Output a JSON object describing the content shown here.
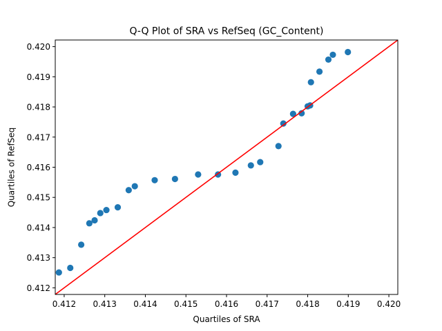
{
  "chart_data": {
    "type": "scatter",
    "title": "Q-Q Plot of SRA vs RefSeq (GC_Content)",
    "xlabel": "Quartiles of SRA",
    "ylabel": "Quartiles of RefSeq",
    "xlim": [
      0.41178,
      0.42022
    ],
    "ylim": [
      0.41178,
      0.42022
    ],
    "xticks": [
      "0.412",
      "0.413",
      "0.414",
      "0.415",
      "0.416",
      "0.417",
      "0.418",
      "0.419",
      "0.420"
    ],
    "yticks": [
      "0.412",
      "0.413",
      "0.414",
      "0.415",
      "0.416",
      "0.417",
      "0.418",
      "0.419",
      "0.420"
    ],
    "grid": false,
    "colors": {
      "points": "#1f77b4",
      "reference_line": "#ff0000"
    },
    "reference_line": {
      "from": [
        0.41178,
        0.41178
      ],
      "to": [
        0.42022,
        0.42022
      ]
    },
    "points": [
      {
        "x": 0.41187,
        "y": 0.41251
      },
      {
        "x": 0.41215,
        "y": 0.41266
      },
      {
        "x": 0.41242,
        "y": 0.41343
      },
      {
        "x": 0.41262,
        "y": 0.41414
      },
      {
        "x": 0.41275,
        "y": 0.41424
      },
      {
        "x": 0.41289,
        "y": 0.41448
      },
      {
        "x": 0.41304,
        "y": 0.41458
      },
      {
        "x": 0.41332,
        "y": 0.41467
      },
      {
        "x": 0.41359,
        "y": 0.41524
      },
      {
        "x": 0.41374,
        "y": 0.41537
      },
      {
        "x": 0.41423,
        "y": 0.41557
      },
      {
        "x": 0.41473,
        "y": 0.41561
      },
      {
        "x": 0.4153,
        "y": 0.41576
      },
      {
        "x": 0.41579,
        "y": 0.41576
      },
      {
        "x": 0.41622,
        "y": 0.41582
      },
      {
        "x": 0.4166,
        "y": 0.41606
      },
      {
        "x": 0.41683,
        "y": 0.41617
      },
      {
        "x": 0.41728,
        "y": 0.4167
      },
      {
        "x": 0.4174,
        "y": 0.41745
      },
      {
        "x": 0.41764,
        "y": 0.41777
      },
      {
        "x": 0.41785,
        "y": 0.41779
      },
      {
        "x": 0.418,
        "y": 0.41802
      },
      {
        "x": 0.41806,
        "y": 0.41805
      },
      {
        "x": 0.41808,
        "y": 0.41882
      },
      {
        "x": 0.41829,
        "y": 0.41917
      },
      {
        "x": 0.41851,
        "y": 0.41957
      },
      {
        "x": 0.41862,
        "y": 0.41973
      },
      {
        "x": 0.41899,
        "y": 0.41982
      }
    ]
  }
}
